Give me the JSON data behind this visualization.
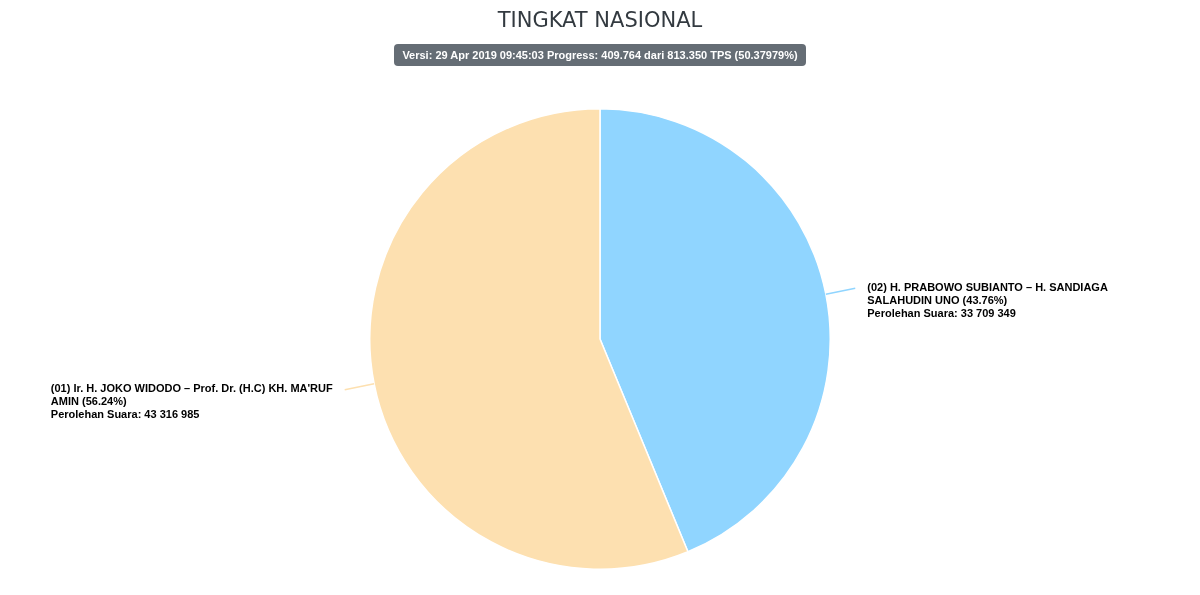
{
  "chart_data": {
    "type": "pie",
    "title": "TINGKAT NASIONAL",
    "subtitle": "Versi: 29 Apr 2019 09:45:03 Progress: 409.764 dari 813.350 TPS (50.37979%)",
    "categories": [
      "(02) H. PRABOWO SUBIANTO – H. SANDIAGA SALAHUDIN UNO (43.76%)",
      "(01) Ir. H. JOKO WIDODO – Prof. Dr. (H.C) KH. MA'RUF AMIN (56.24%)"
    ],
    "values": [
      33709349,
      43316985
    ],
    "value_labels": [
      "Perolehan Suara: 33 709 349",
      "Perolehan Suara: 43 316 985"
    ],
    "colors": [
      "#90d5ff",
      "#fde0b0"
    ],
    "legend": false
  }
}
